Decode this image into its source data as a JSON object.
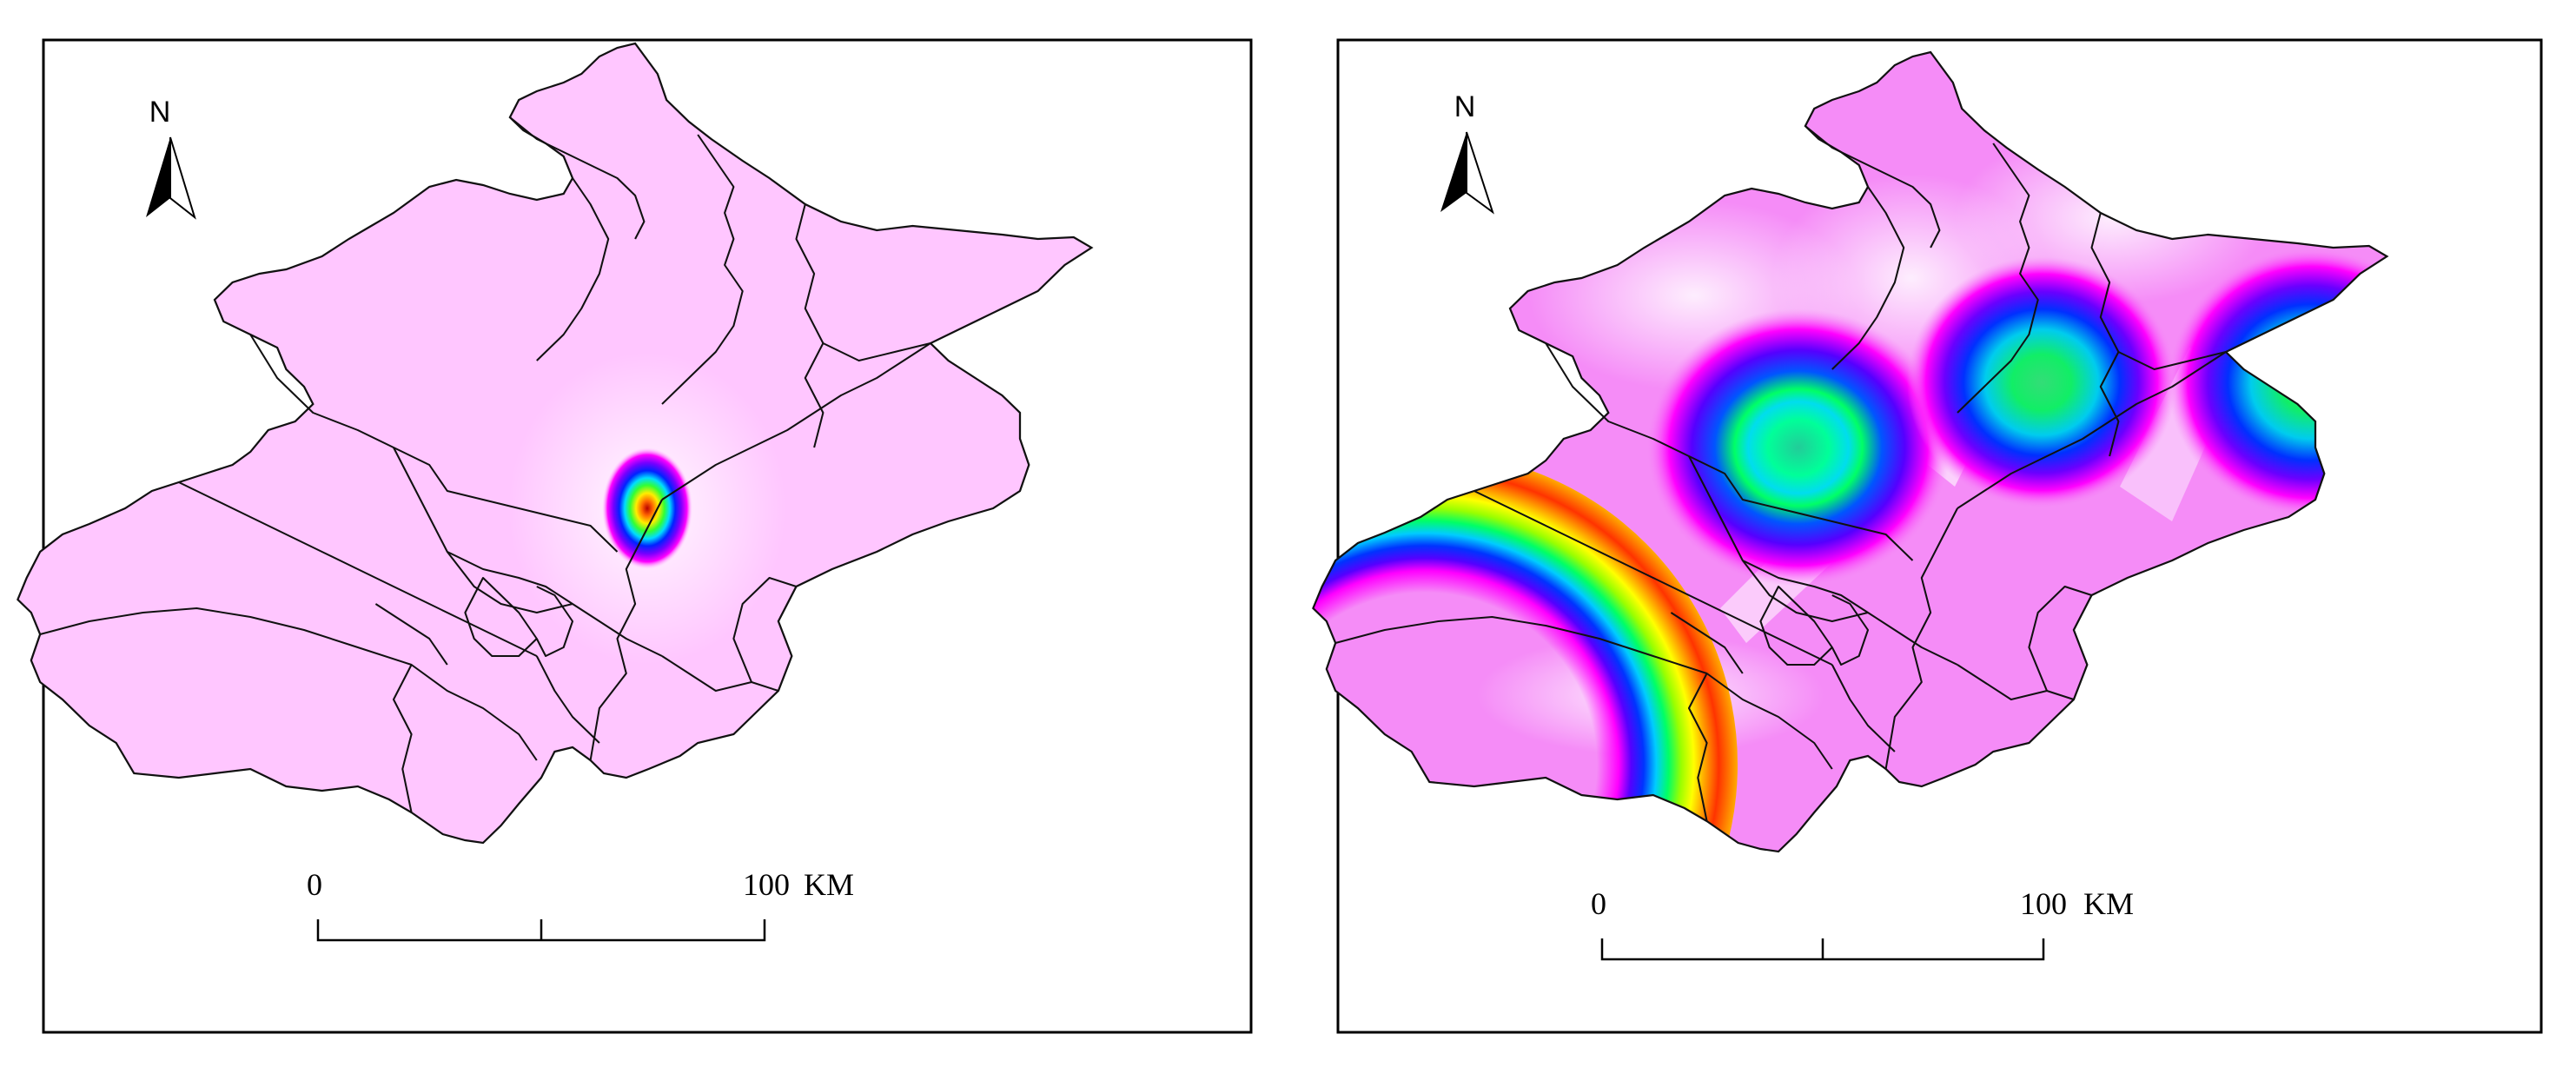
{
  "panels": [
    {
      "id": "left",
      "north_label": "N",
      "scale": {
        "start": "0",
        "end": "100",
        "unit": "KM"
      },
      "colors": {
        "base_fill": "#ffc6ff",
        "hotspot_palette": [
          "#ff00ff",
          "#6a00ff",
          "#0000ff",
          "#00ccff",
          "#00ff66",
          "#ffff00",
          "#ff8800",
          "#cc0000"
        ]
      }
    },
    {
      "id": "right",
      "north_label": "N",
      "scale": {
        "start": "0",
        "end": "100",
        "unit": "KM"
      },
      "colors": {
        "base_fill": "#f58cf7",
        "hotspot_palette": [
          "#ff00ff",
          "#6a00ff",
          "#0000ff",
          "#00ccff",
          "#00ff66",
          "#ffff00",
          "#ff8800"
        ]
      }
    }
  ]
}
